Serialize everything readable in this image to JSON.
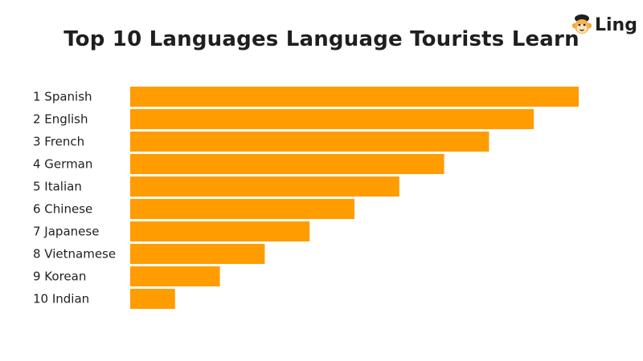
{
  "brand": {
    "name": "Ling",
    "logo_icon": "monkey-face-icon"
  },
  "chart_data": {
    "type": "bar",
    "orientation": "horizontal",
    "title": "Top 10 Languages Language Tourists Learn",
    "categories": [
      "1 Spanish",
      "2 English",
      "3 French",
      "4 German",
      "5 Italian",
      "6 Chinese",
      "7 Japanese",
      "8 Vietnamese",
      "9 Korean",
      "10 Indian"
    ],
    "values": [
      10,
      9,
      8,
      7,
      6,
      5,
      4,
      3,
      2,
      1
    ],
    "xlim": [
      0,
      10
    ],
    "grid": false,
    "legend": "none",
    "bar_color": "#FF9C00"
  }
}
